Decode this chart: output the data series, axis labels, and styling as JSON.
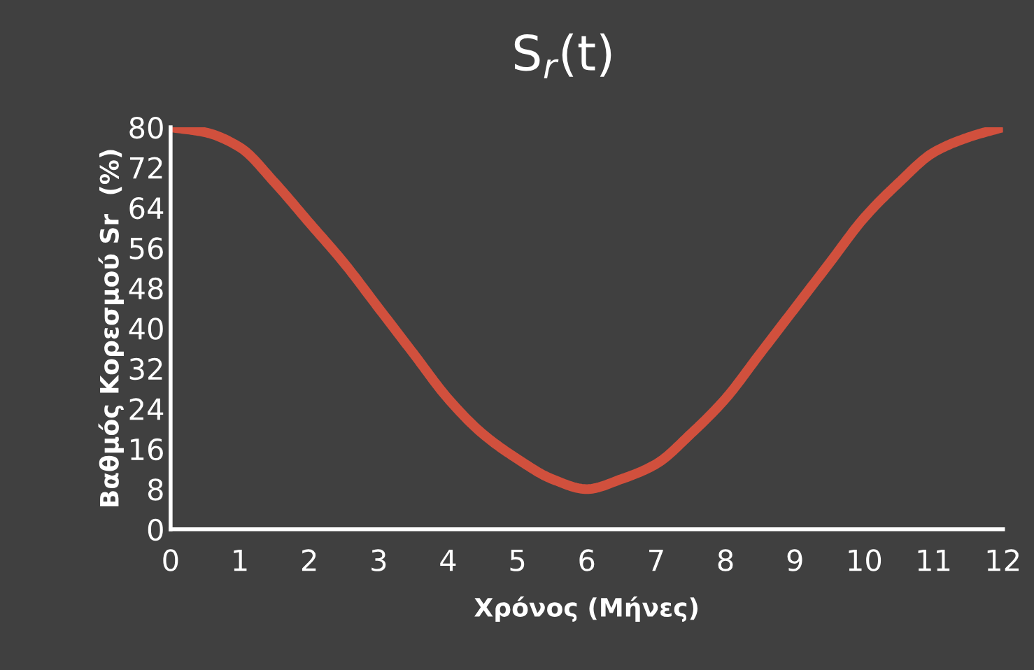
{
  "chart_data": {
    "type": "line",
    "title": "S$_{r}$(t)",
    "xlabel": "Χρόνος (Μήνες)",
    "ylabel": "Βαθμός Κορεσμού Sr  (%)",
    "x": [
      0,
      0.5,
      1,
      1.5,
      2,
      2.5,
      3,
      3.5,
      4,
      4.5,
      5,
      5.5,
      6,
      6.5,
      7,
      7.5,
      8,
      8.5,
      9,
      9.5,
      10,
      10.5,
      11,
      11.5,
      12
    ],
    "series": [
      {
        "color": "#d1503d",
        "values": [
          80,
          79,
          76,
          69,
          61,
          53,
          44,
          35,
          26,
          19,
          14,
          10,
          8,
          10,
          13,
          19,
          26,
          35,
          44,
          53,
          62,
          69,
          75,
          78,
          80
        ]
      }
    ],
    "xlim": [
      0,
      12
    ],
    "xticks": [
      0,
      1,
      2,
      3,
      4,
      5,
      6,
      7,
      8,
      9,
      10,
      11,
      12
    ],
    "ylim": [
      0,
      80
    ],
    "yticks": [
      0,
      8,
      16,
      24,
      32,
      40,
      48,
      56,
      64,
      72,
      80
    ],
    "grid": false,
    "legend": false,
    "marker": "none",
    "line_style": "solid"
  }
}
